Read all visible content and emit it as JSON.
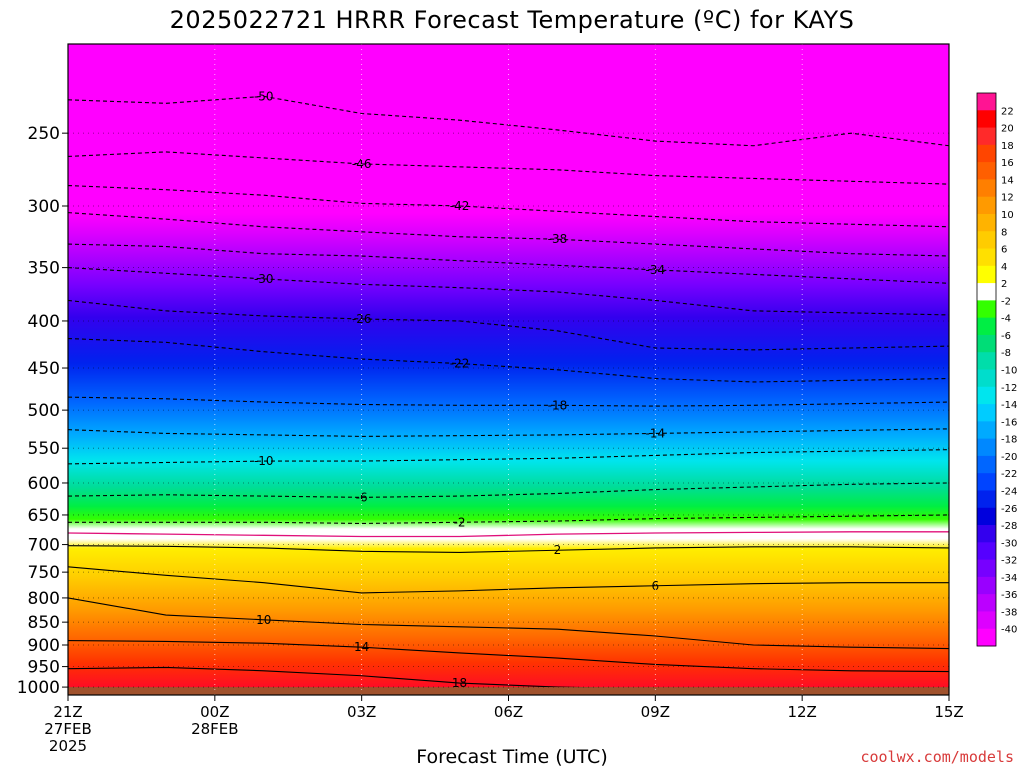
{
  "title": "2025022721 HRRR Forecast Temperature (ºC) for KAYS",
  "credit": "coolwx.com/models",
  "colors": {
    "ground": "#a0522d",
    "freezing_line": "#e0107a",
    "contour": "#000000"
  },
  "chart_data": {
    "type": "heatmap",
    "title": "2025022721 HRRR Forecast Temperature (ºC) for KAYS",
    "xlabel": "Forecast Time (UTC)",
    "ylabel": "",
    "x_ticks": [
      {
        "h": 0,
        "lines": [
          "21Z",
          "27FEB",
          "2025"
        ]
      },
      {
        "h": 3,
        "lines": [
          "00Z",
          "28FEB"
        ]
      },
      {
        "h": 6,
        "lines": [
          "03Z"
        ]
      },
      {
        "h": 9,
        "lines": [
          "06Z"
        ]
      },
      {
        "h": 12,
        "lines": [
          "09Z"
        ]
      },
      {
        "h": 15,
        "lines": [
          "12Z"
        ]
      },
      {
        "h": 18,
        "lines": [
          "15Z"
        ]
      }
    ],
    "xlim": [
      0,
      18
    ],
    "y_ticks": [
      250,
      300,
      350,
      400,
      450,
      500,
      550,
      600,
      650,
      700,
      750,
      800,
      850,
      900,
      950,
      1000
    ],
    "ylim": [
      200,
      1020
    ],
    "y_scale": "log-pressure",
    "grid": true,
    "legend": {
      "position": "right",
      "levels": [
        22,
        20,
        18,
        16,
        14,
        12,
        10,
        8,
        6,
        4,
        2,
        -2,
        -4,
        -6,
        -8,
        -10,
        -12,
        -14,
        -16,
        -18,
        -20,
        -22,
        -24,
        -26,
        -28,
        -30,
        -32,
        -34,
        -36,
        -38,
        -40
      ],
      "colors": [
        "#ff1493",
        "#ff0000",
        "#ff2a2a",
        "#ff4500",
        "#ff5f00",
        "#ff7f00",
        "#ff9a00",
        "#ffb300",
        "#ffcc00",
        "#ffe000",
        "#ffff00",
        "#ffffff",
        "#33ff00",
        "#00ee44",
        "#00dd77",
        "#00ddaa",
        "#00ddcc",
        "#00e5ee",
        "#00ccff",
        "#00aaff",
        "#0088ff",
        "#0066ff",
        "#0044ff",
        "#0022ee",
        "#0000dd",
        "#3300ee",
        "#5500ff",
        "#7700ff",
        "#9900ff",
        "#bb00ff",
        "#dd00ff",
        "#ff00ff"
      ]
    },
    "contours": [
      {
        "label": "-50",
        "p": [
          230,
          232,
          228,
          238,
          242,
          248,
          255,
          258,
          250,
          258
        ]
      },
      {
        "label": "-46",
        "p": [
          265,
          262,
          266,
          270,
          272,
          274,
          278,
          280,
          282,
          284
        ]
      },
      {
        "label": "-42",
        "p": [
          285,
          288,
          292,
          298,
          300,
          304,
          308,
          312,
          314,
          316
        ]
      },
      {
        "label": "-38",
        "p": [
          305,
          310,
          316,
          320,
          324,
          326,
          330,
          334,
          338,
          340
        ]
      },
      {
        "label": "-34",
        "p": [
          330,
          332,
          338,
          340,
          344,
          348,
          352,
          356,
          360,
          364
        ]
      },
      {
        "label": "-30",
        "p": [
          350,
          355,
          360,
          365,
          368,
          372,
          380,
          390,
          392,
          394
        ]
      },
      {
        "label": "-26",
        "p": [
          380,
          390,
          395,
          398,
          400,
          410,
          428,
          430,
          428,
          426
        ]
      },
      {
        "label": "-22",
        "p": [
          418,
          422,
          432,
          440,
          445,
          452,
          462,
          466,
          464,
          462
        ]
      },
      {
        "label": "-18",
        "p": [
          484,
          486,
          490,
          493,
          494,
          494,
          495,
          494,
          492,
          490
        ]
      },
      {
        "label": "-14",
        "p": [
          525,
          530,
          532,
          534,
          533,
          532,
          530,
          528,
          526,
          524
        ]
      },
      {
        "label": "-10",
        "p": [
          572,
          570,
          568,
          568,
          566,
          564,
          560,
          556,
          554,
          552
        ]
      },
      {
        "label": "-6",
        "p": [
          620,
          618,
          620,
          622,
          620,
          616,
          610,
          606,
          602,
          600
        ]
      },
      {
        "label": "-2",
        "p": [
          662,
          662,
          662,
          664,
          662,
          660,
          656,
          654,
          652,
          650
        ]
      },
      {
        "label": "2",
        "p": [
          702,
          703,
          706,
          712,
          714,
          710,
          706,
          704,
          704,
          706
        ]
      },
      {
        "label": "6",
        "p": [
          740,
          756,
          770,
          790,
          786,
          780,
          776,
          772,
          770,
          770
        ]
      },
      {
        "label": "10",
        "p": [
          800,
          835,
          845,
          855,
          860,
          865,
          880,
          900,
          905,
          908
        ]
      },
      {
        "label": "14",
        "p": [
          890,
          892,
          896,
          905,
          918,
          930,
          945,
          955,
          960,
          962
        ]
      },
      {
        "label": "18",
        "p": [
          955,
          952,
          960,
          972,
          990,
          1000,
          1005,
          1008,
          1010,
          1010
        ]
      }
    ],
    "freezing_line": {
      "label": "0",
      "p": [
        680,
        682,
        684,
        686,
        686,
        682,
        680,
        679,
        678,
        678
      ]
    },
    "ground": {
      "p": 1000
    }
  }
}
